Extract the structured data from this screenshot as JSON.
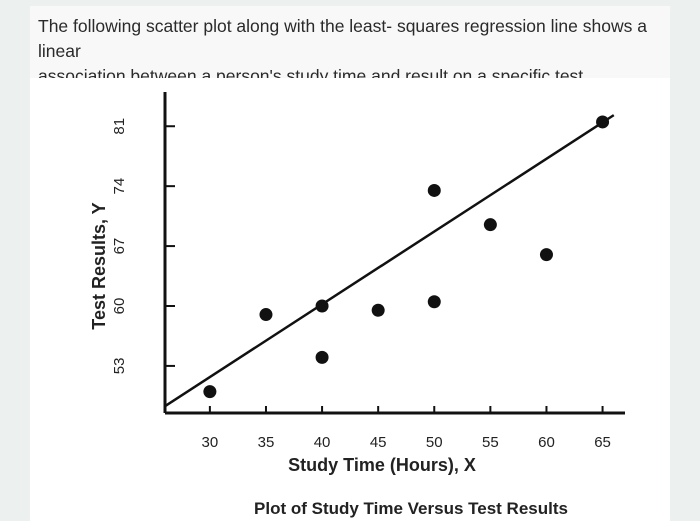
{
  "question": {
    "line1": "The following scatter plot along with the least- squares regression line shows a linear",
    "line2": "association between a person's study time and result on a specific test."
  },
  "chart_data": {
    "type": "scatter",
    "title": "Plot of Study Time Versus Test Results",
    "xlabel": "Study Time (Hours), X",
    "ylabel": "Test Results, Y",
    "x_ticks": [
      30,
      35,
      40,
      45,
      50,
      55,
      60,
      65
    ],
    "y_ticks": [
      53,
      60,
      67,
      74,
      81
    ],
    "xlim": [
      26,
      67
    ],
    "ylim": [
      47.5,
      85
    ],
    "grid": false,
    "points": [
      {
        "x": 30,
        "y": 50
      },
      {
        "x": 35,
        "y": 59
      },
      {
        "x": 40,
        "y": 60
      },
      {
        "x": 40,
        "y": 54
      },
      {
        "x": 45,
        "y": 59.5
      },
      {
        "x": 50,
        "y": 73.5
      },
      {
        "x": 50,
        "y": 60.5
      },
      {
        "x": 55,
        "y": 69.5
      },
      {
        "x": 60,
        "y": 66
      },
      {
        "x": 65,
        "y": 81.5
      }
    ],
    "regression_line": {
      "x": [
        26,
        66
      ],
      "y": [
        48.3,
        82.3
      ]
    },
    "colors": {
      "points": "#111111",
      "line": "#111111",
      "axes": "#111111"
    }
  }
}
